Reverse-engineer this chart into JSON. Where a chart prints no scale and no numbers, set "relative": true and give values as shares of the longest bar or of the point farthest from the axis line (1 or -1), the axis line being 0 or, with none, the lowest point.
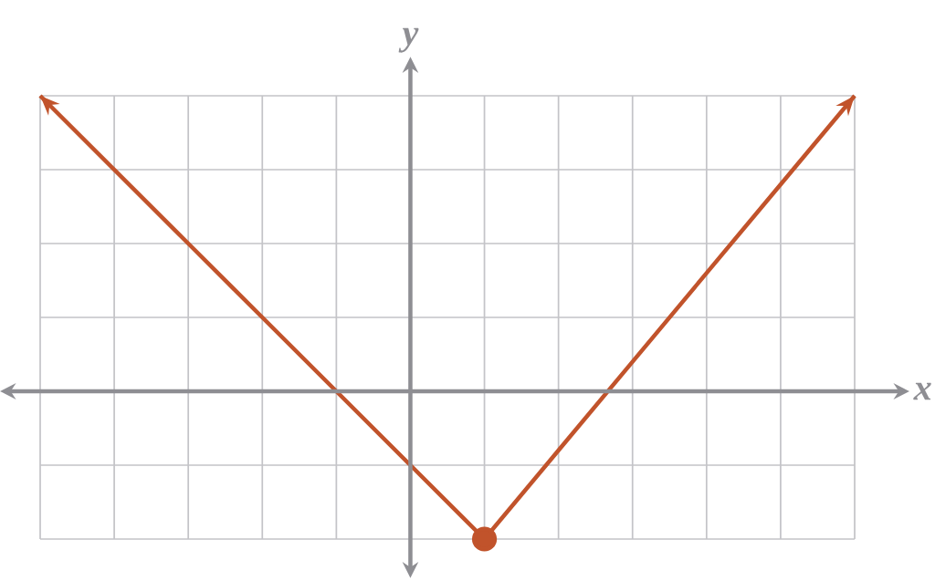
{
  "chart_data": {
    "type": "line",
    "relative": true,
    "xlabel": "x",
    "ylabel": "y",
    "categories": [
      null,
      null,
      null,
      null,
      null,
      null,
      null,
      null,
      null,
      null,
      null,
      null
    ],
    "grid": true,
    "series": [
      {
        "values": [
          1,
          0.75,
          0.5,
          0.25,
          0,
          -0.25,
          -0.5,
          -0.2,
          0.1,
          0.4,
          0.7,
          1
        ],
        "color": "#c1532b",
        "line_style": "solid"
      }
    ]
  }
}
